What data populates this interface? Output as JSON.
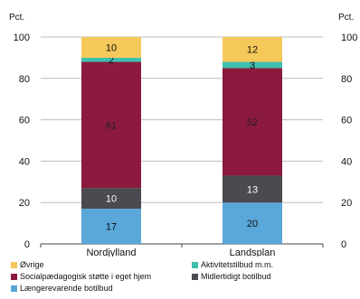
{
  "chart_data": {
    "type": "bar",
    "stacked": true,
    "title": "",
    "ylabel_left": "Pct.",
    "ylabel_right": "Pct.",
    "ylim": [
      0,
      100
    ],
    "yticks": [
      0,
      20,
      40,
      60,
      80,
      100
    ],
    "grid": true,
    "legend_position": "bottom",
    "categories": [
      "Nordjylland",
      "Landsplan"
    ],
    "series": [
      {
        "name": "Længerevarende botilbud",
        "color": "#5aa7d9",
        "values": [
          17,
          20
        ]
      },
      {
        "name": "Midlertidigt botilbud",
        "color": "#4a4a50",
        "values": [
          10,
          13
        ]
      },
      {
        "name": "Socialpædagogisk støtte i eget hjem",
        "color": "#8b1a3e",
        "values": [
          61,
          52
        ]
      },
      {
        "name": "Aktivitetstilbud m.m.",
        "color": "#3fbfad",
        "values": [
          2,
          3
        ]
      },
      {
        "name": "Øvrige",
        "color": "#f5c85a",
        "values": [
          10,
          12
        ]
      }
    ],
    "legend_order": [
      "Øvrige",
      "Aktivitetstilbud m.m.",
      "Socialpædagogisk støtte i eget hjem",
      "Midlertidigt botilbud",
      "Længerevarende botilbud"
    ]
  }
}
